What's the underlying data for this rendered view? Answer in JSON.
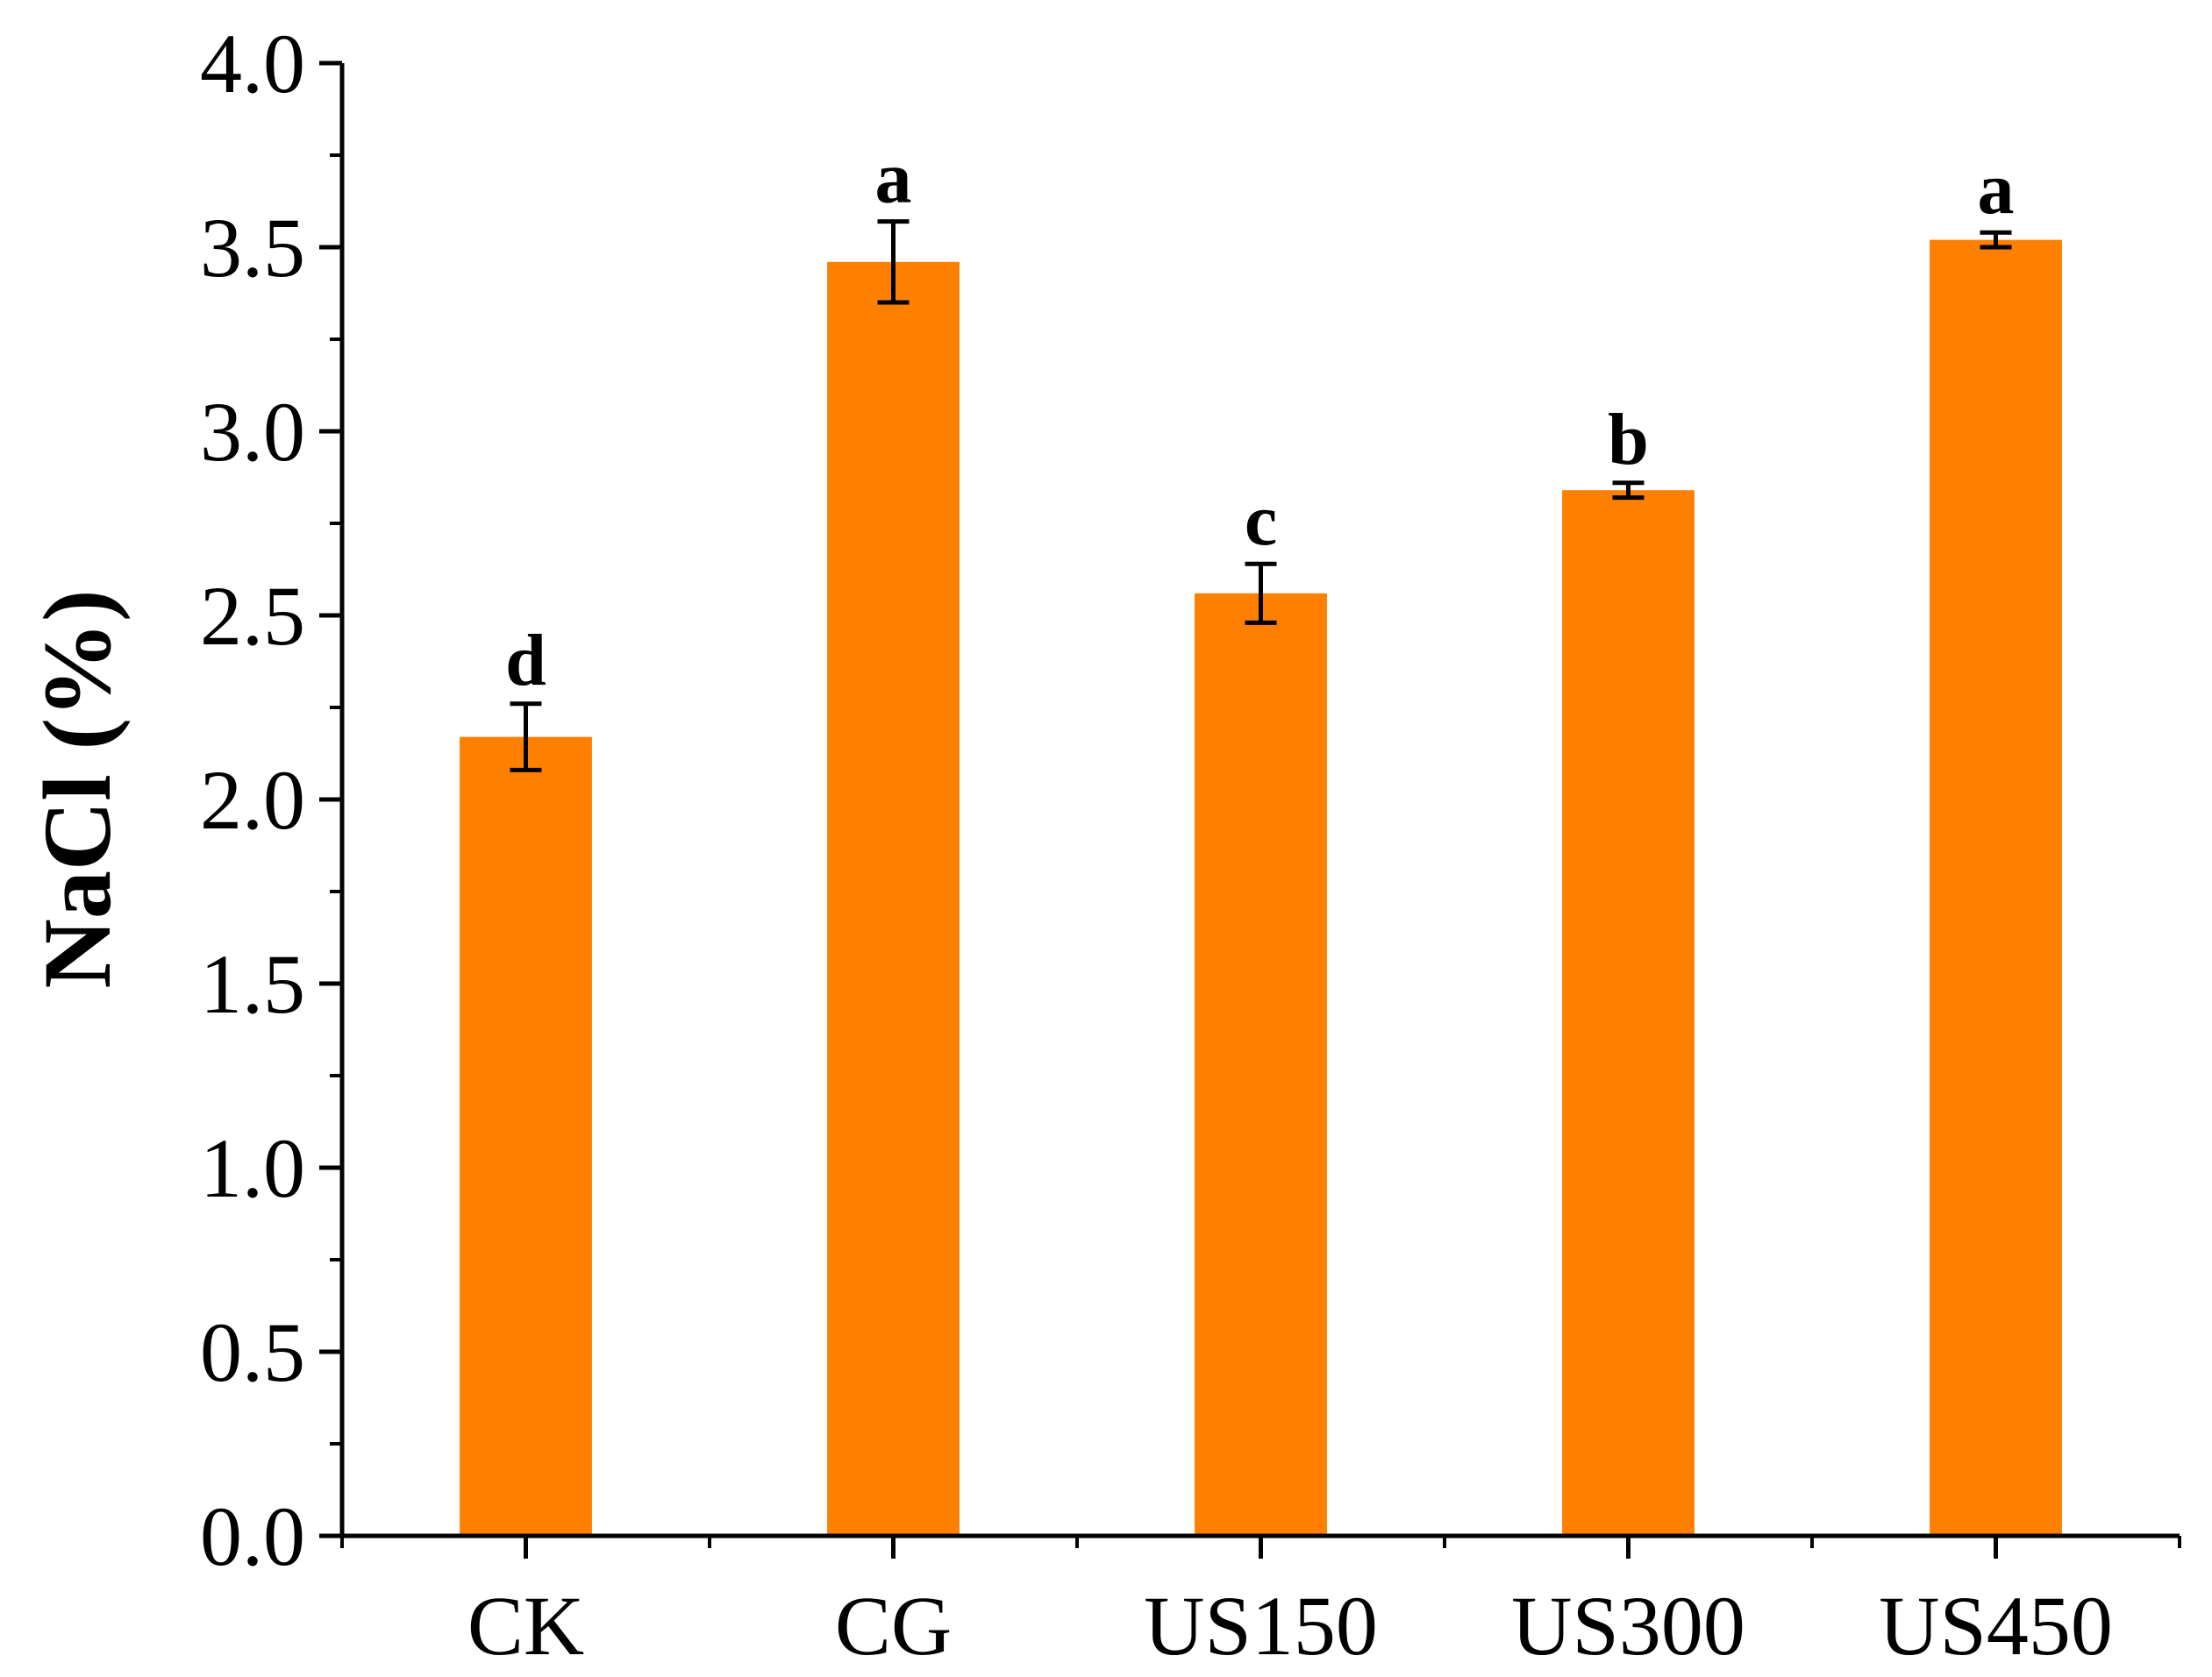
{
  "chart_data": {
    "type": "bar",
    "title": "",
    "xlabel": "",
    "ylabel": "NaCl (%)",
    "ylim": [
      0,
      4.0
    ],
    "yticks": [
      "0.0",
      "0.5",
      "1.0",
      "1.5",
      "2.0",
      "2.5",
      "3.0",
      "3.5",
      "4.0"
    ],
    "categories": [
      "CK",
      "CG",
      "US150",
      "US300",
      "US450"
    ],
    "values": [
      2.17,
      3.46,
      2.56,
      2.84,
      3.52
    ],
    "errors": [
      0.09,
      0.11,
      0.08,
      0.02,
      0.02
    ],
    "significance": [
      "d",
      "a",
      "c",
      "b",
      "a"
    ],
    "bar_color": "#FF7F00",
    "grid": false,
    "legend": "none"
  }
}
